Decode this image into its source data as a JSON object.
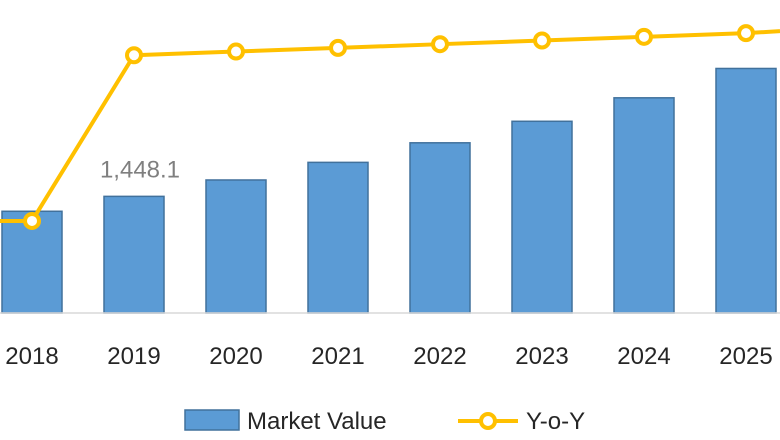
{
  "chart_data": {
    "type": "bar",
    "categories": [
      "2018",
      "2019",
      "2020",
      "2021",
      "2022",
      "2023",
      "2024",
      "2025"
    ],
    "series": [
      {
        "name": "Market Value",
        "kind": "bar",
        "color": "#5b9bd5",
        "values": [
          1410,
          1448.1,
          1490,
          1535,
          1585,
          1640,
          1700,
          1775
        ]
      },
      {
        "name": "Y-o-Y",
        "kind": "line",
        "color": "#ffc000",
        "values": [
          2.5,
          7.0,
          7.1,
          7.2,
          7.3,
          7.4,
          7.5,
          7.6
        ]
      }
    ],
    "data_labels": [
      {
        "series": "Market Value",
        "category": "2019",
        "text": "1,448.1"
      }
    ],
    "legend": {
      "position": "bottom",
      "items": [
        {
          "label": "Market Value",
          "marker": "bar"
        },
        {
          "label": "Y-o-Y",
          "marker": "line"
        }
      ]
    },
    "y_axis_left": {
      "min": 1150,
      "max": 1950,
      "visible": false
    },
    "y_axis_right": {
      "min": 0,
      "max": 8.5,
      "visible": false
    },
    "grid": false
  }
}
